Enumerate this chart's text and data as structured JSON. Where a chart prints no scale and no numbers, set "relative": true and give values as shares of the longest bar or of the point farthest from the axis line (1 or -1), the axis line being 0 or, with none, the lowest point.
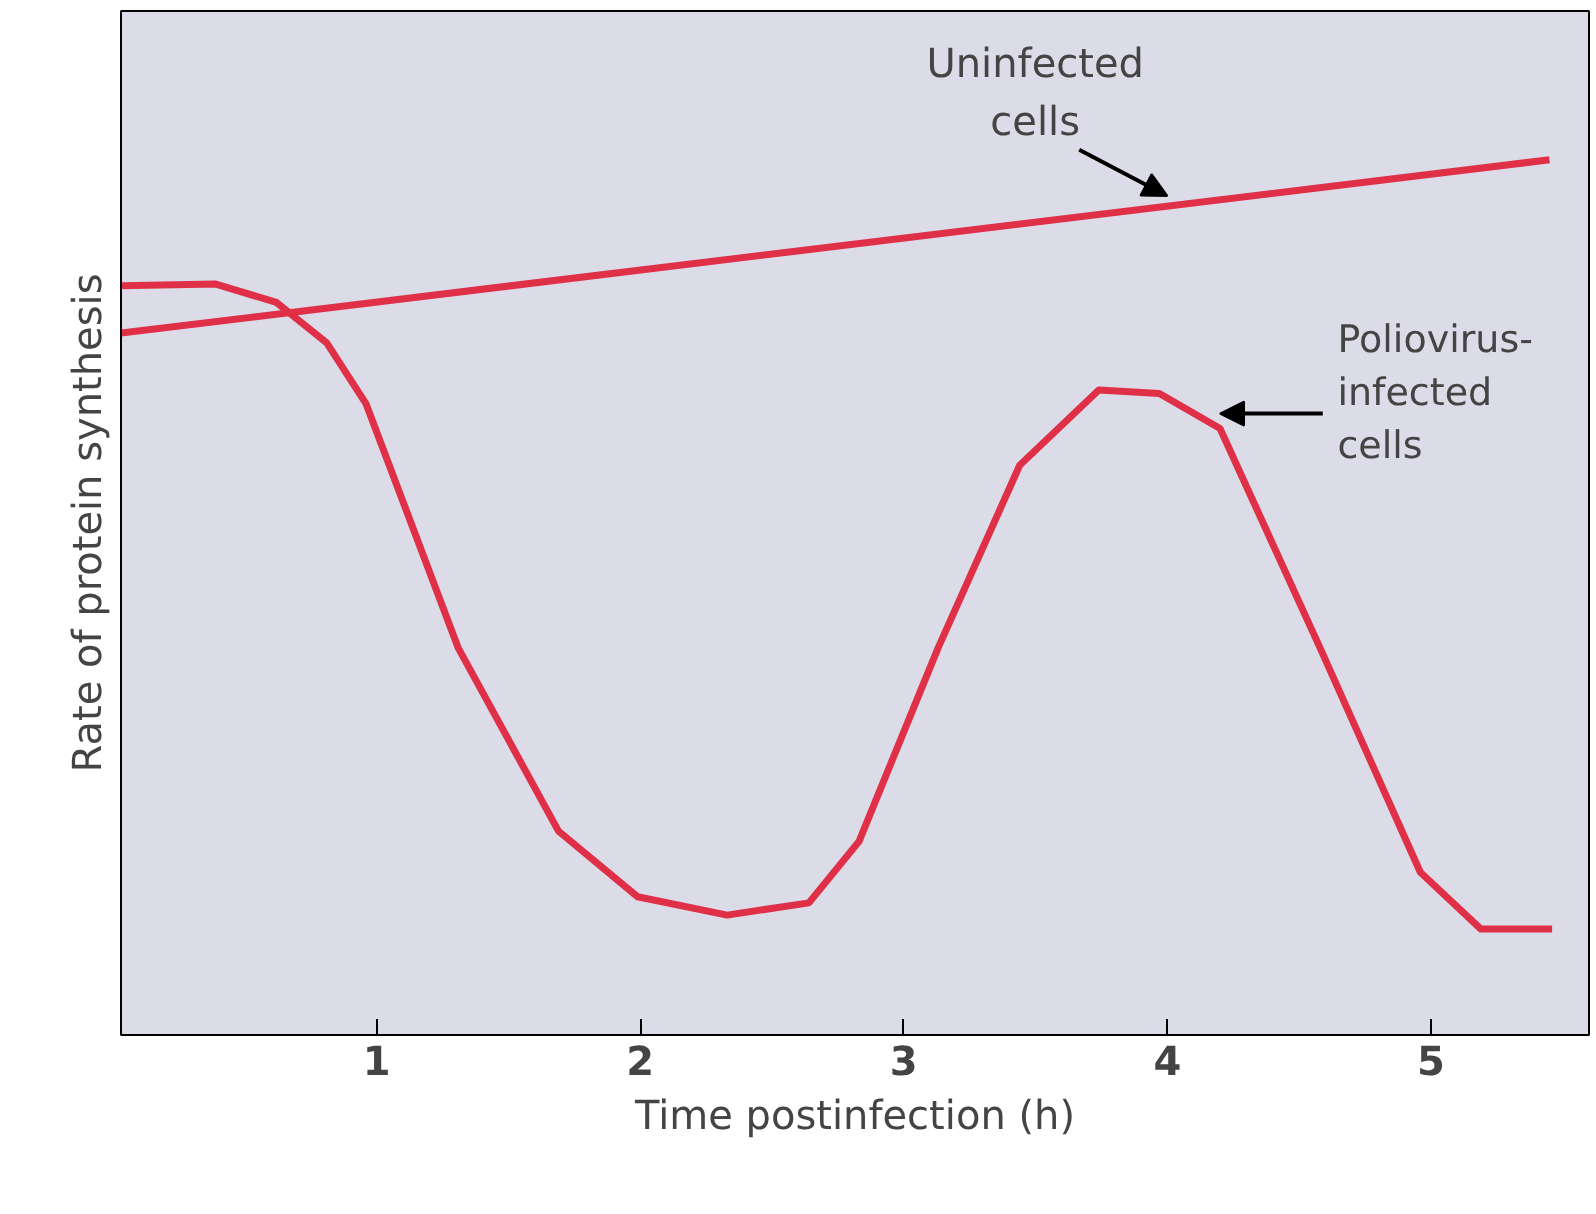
{
  "chart_data": {
    "type": "line",
    "relative": true,
    "xlabel": "Time postinfection (h)",
    "ylabel": "Rate of protein synthesis",
    "xlim": [
      0.03,
      5.6
    ],
    "xticks": [
      1,
      2,
      3,
      4,
      5
    ],
    "grid": false,
    "marker": "none",
    "line_style": "solid",
    "series": [
      {
        "color": "#e03048",
        "x": [
          0.03,
          5.45
        ],
        "values": [
          0.802,
          1.0
        ]
      },
      {
        "color": "#e03048",
        "x": [
          0.03,
          0.39,
          0.62,
          0.81,
          0.96,
          1.31,
          1.69,
          1.99,
          2.33,
          2.64,
          2.83,
          3.13,
          3.44,
          3.74,
          3.97,
          4.2,
          4.58,
          4.96,
          5.19,
          5.46
        ],
        "values": [
          0.856,
          0.858,
          0.837,
          0.791,
          0.721,
          0.442,
          0.233,
          0.158,
          0.137,
          0.151,
          0.221,
          0.442,
          0.651,
          0.737,
          0.733,
          0.693,
          0.442,
          0.186,
          0.121,
          0.121
        ]
      }
    ],
    "annotations": [
      {
        "text": "Uninfected cells",
        "x": 4.0,
        "y": 0.947
      },
      {
        "text": "Poliovirus-infected cells",
        "x": 4.2,
        "y": 0.71
      }
    ]
  }
}
